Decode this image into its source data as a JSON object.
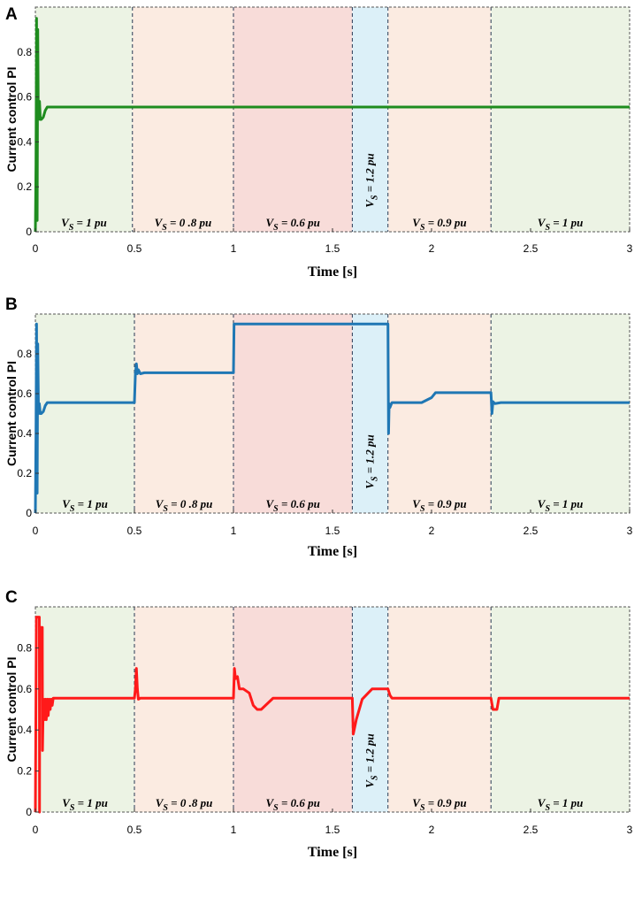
{
  "chart_data": [
    {
      "type": "line",
      "panel": "A",
      "ylabel": "Current control PI",
      "xlabel": "Time [s]",
      "xlim": [
        0,
        3
      ],
      "ylim": [
        0,
        1
      ],
      "xticks": [
        "0",
        "0.5",
        "1",
        "1.5",
        "2",
        "2.5",
        "3"
      ],
      "yticks": [
        "0",
        "0.2",
        "0.4",
        "0.6",
        "0.8"
      ],
      "grid": false,
      "color": "#1e8c1e",
      "regions": [
        {
          "x0": 0,
          "x1": 0.49,
          "label": "V_S = 1 pu",
          "color": "#ecf3e4"
        },
        {
          "x0": 0.49,
          "x1": 1.0,
          "label": "V_S = 0 .8 pu",
          "color": "#fbebe1"
        },
        {
          "x0": 1.0,
          "x1": 1.6,
          "label": "V_S = 0.6 pu",
          "color": "#f8dcd9"
        },
        {
          "x0": 1.6,
          "x1": 1.78,
          "label": "V_S = 1.2 pu",
          "color": "#dcf0f8"
        },
        {
          "x0": 1.78,
          "x1": 2.3,
          "label": "V_S = 0.9 pu",
          "color": "#fbebe1"
        },
        {
          "x0": 2.3,
          "x1": 3.0,
          "label": "V_S = 1 pu",
          "color": "#ecf3e4"
        }
      ],
      "x": [
        0,
        0.003,
        0.006,
        0.009,
        0.012,
        0.015,
        0.018,
        0.021,
        0.025,
        0.03,
        0.04,
        0.05,
        0.06,
        0.08,
        0.1,
        0.5,
        1.0,
        1.5,
        2.0,
        2.5,
        3.0
      ],
      "y": [
        0.0,
        0.3,
        0.95,
        0.05,
        0.9,
        0.5,
        0.52,
        0.58,
        0.5,
        0.5,
        0.51,
        0.54,
        0.555,
        0.555,
        0.555,
        0.555,
        0.555,
        0.555,
        0.555,
        0.555,
        0.555
      ]
    },
    {
      "type": "line",
      "panel": "B",
      "ylabel": "Current control PI",
      "xlabel": "Time [s]",
      "xlim": [
        0,
        3
      ],
      "ylim": [
        0,
        1
      ],
      "xticks": [
        "0",
        "0.5",
        "1",
        "1.5",
        "2",
        "2.5",
        "3"
      ],
      "yticks": [
        "0",
        "0.2",
        "0.4",
        "0.6",
        "0.8"
      ],
      "grid": false,
      "color": "#1f77b4",
      "regions": [
        {
          "x0": 0,
          "x1": 0.5,
          "label": "V_S = 1 pu",
          "color": "#ecf3e4"
        },
        {
          "x0": 0.5,
          "x1": 1.0,
          "label": "V_S = 0 .8 pu",
          "color": "#fbebe1"
        },
        {
          "x0": 1.0,
          "x1": 1.6,
          "label": "V_S = 0.6 pu",
          "color": "#f8dcd9"
        },
        {
          "x0": 1.6,
          "x1": 1.78,
          "label": "V_S = 1.2 pu",
          "color": "#dcf0f8"
        },
        {
          "x0": 1.78,
          "x1": 2.3,
          "label": "V_S = 0.9 pu",
          "color": "#fbebe1"
        },
        {
          "x0": 2.3,
          "x1": 3.0,
          "label": "V_S = 1 pu",
          "color": "#ecf3e4"
        }
      ],
      "x": [
        0,
        0.003,
        0.006,
        0.009,
        0.012,
        0.016,
        0.02,
        0.025,
        0.03,
        0.04,
        0.05,
        0.06,
        0.08,
        0.5,
        0.505,
        0.51,
        0.515,
        0.52,
        0.53,
        0.55,
        1.0,
        1.003,
        1.01,
        1.78,
        1.783,
        1.786,
        1.79,
        1.8,
        1.85,
        1.95,
        2.0,
        2.02,
        2.3,
        2.305,
        2.31,
        2.32,
        2.35,
        3.0
      ],
      "y": [
        0.0,
        0.4,
        0.95,
        0.1,
        0.85,
        0.5,
        0.55,
        0.5,
        0.5,
        0.51,
        0.54,
        0.555,
        0.555,
        0.555,
        0.7,
        0.75,
        0.7,
        0.72,
        0.7,
        0.705,
        0.705,
        0.95,
        0.95,
        0.95,
        0.4,
        0.55,
        0.53,
        0.555,
        0.555,
        0.555,
        0.58,
        0.605,
        0.605,
        0.5,
        0.56,
        0.55,
        0.555,
        0.555
      ]
    },
    {
      "type": "line",
      "panel": "C",
      "ylabel": "Current control PI",
      "xlabel": "Time [s]",
      "xlim": [
        0,
        3
      ],
      "ylim": [
        0,
        1
      ],
      "xticks": [
        "0",
        "0.5",
        "1",
        "1.5",
        "2",
        "2.5",
        "3"
      ],
      "yticks": [
        "0",
        "0.2",
        "0.4",
        "0.6",
        "0.8"
      ],
      "grid": false,
      "color": "#ff1a1a",
      "regions": [
        {
          "x0": 0,
          "x1": 0.5,
          "label": "V_S = 1 pu",
          "color": "#ecf3e4"
        },
        {
          "x0": 0.5,
          "x1": 1.0,
          "label": "V_S = 0 .8 pu",
          "color": "#fbebe1"
        },
        {
          "x0": 1.0,
          "x1": 1.6,
          "label": "V_S = 0.6 pu",
          "color": "#f8dcd9"
        },
        {
          "x0": 1.6,
          "x1": 1.78,
          "label": "V_S = 1.2 pu",
          "color": "#dcf0f8"
        },
        {
          "x0": 1.78,
          "x1": 2.3,
          "label": "V_S = 0.9 pu",
          "color": "#fbebe1"
        },
        {
          "x0": 2.3,
          "x1": 3.0,
          "label": "V_S = 1 pu",
          "color": "#ecf3e4"
        }
      ],
      "x": [
        0,
        0.005,
        0.006,
        0.02,
        0.021,
        0.022,
        0.035,
        0.036,
        0.04,
        0.045,
        0.05,
        0.055,
        0.06,
        0.065,
        0.07,
        0.075,
        0.08,
        0.085,
        0.09,
        0.1,
        0.5,
        0.505,
        0.51,
        0.515,
        0.52,
        0.53,
        1.0,
        1.005,
        1.01,
        1.02,
        1.03,
        1.05,
        1.08,
        1.1,
        1.12,
        1.14,
        1.2,
        1.6,
        1.605,
        1.62,
        1.65,
        1.68,
        1.7,
        1.75,
        1.78,
        1.79,
        1.8,
        2.3,
        2.31,
        2.33,
        2.34,
        3.0
      ],
      "y": [
        0.0,
        0.95,
        0.95,
        0.95,
        0.0,
        0.9,
        0.9,
        0.3,
        0.55,
        0.45,
        0.55,
        0.45,
        0.55,
        0.47,
        0.55,
        0.5,
        0.55,
        0.52,
        0.555,
        0.555,
        0.555,
        0.6,
        0.7,
        0.6,
        0.55,
        0.555,
        0.555,
        0.7,
        0.65,
        0.66,
        0.6,
        0.6,
        0.58,
        0.52,
        0.5,
        0.5,
        0.555,
        0.555,
        0.38,
        0.45,
        0.55,
        0.58,
        0.6,
        0.6,
        0.6,
        0.57,
        0.555,
        0.555,
        0.5,
        0.5,
        0.555,
        0.555
      ]
    }
  ]
}
